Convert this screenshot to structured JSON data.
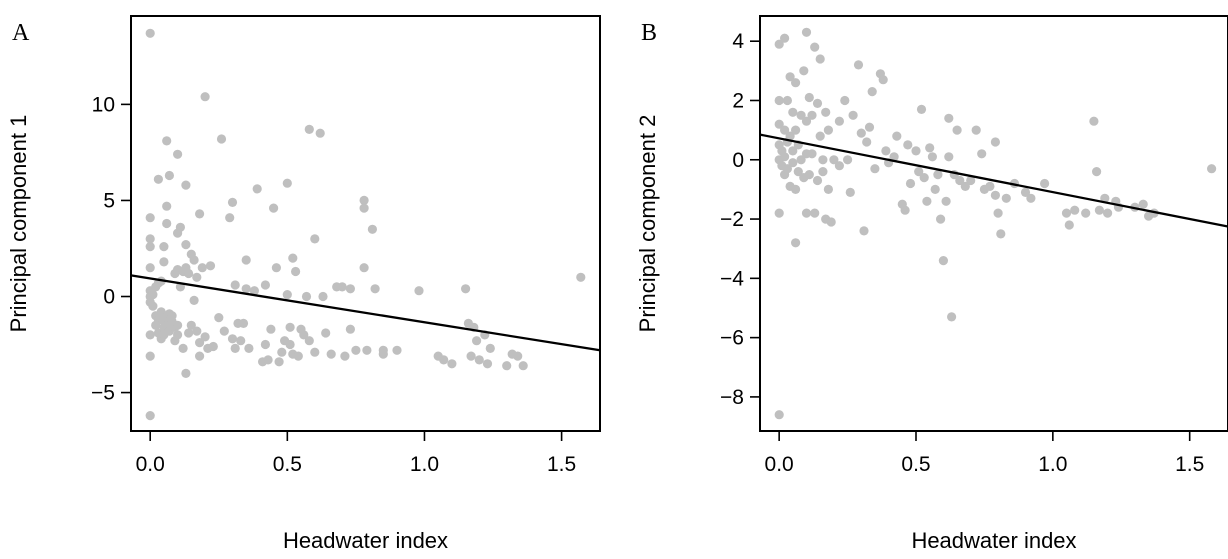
{
  "chart_data": [
    {
      "type": "scatter",
      "panel": "A",
      "xlabel": "Headwater index",
      "ylabel": "Principal component 1",
      "xticks": [
        "0.0",
        "0.5",
        "1.0",
        "1.5"
      ],
      "yticks": [
        "−5",
        "0",
        "5",
        "10"
      ],
      "xlim": [
        -0.07,
        1.64
      ],
      "ylim": [
        -7.0,
        14.6
      ],
      "point_color": "#bfbfbf",
      "line_color": "#000000",
      "grid": false,
      "regression_line": {
        "x": [
          -0.07,
          1.64
        ],
        "y": [
          1.1,
          -2.8
        ]
      },
      "points": [
        [
          0.0,
          13.7
        ],
        [
          0.0,
          4.1
        ],
        [
          0.0,
          3.0
        ],
        [
          0.0,
          2.6
        ],
        [
          0.0,
          1.5
        ],
        [
          0.0,
          0.3
        ],
        [
          0.0,
          0.0
        ],
        [
          0.0,
          -0.3
        ],
        [
          0.0,
          -2.0
        ],
        [
          0.0,
          -3.1
        ],
        [
          0.0,
          -6.2
        ],
        [
          0.01,
          0.1
        ],
        [
          0.01,
          -0.5
        ],
        [
          0.02,
          -1.0
        ],
        [
          0.02,
          -1.5
        ],
        [
          0.02,
          0.5
        ],
        [
          0.03,
          6.1
        ],
        [
          0.03,
          0.7
        ],
        [
          0.03,
          -1.2
        ],
        [
          0.03,
          -1.9
        ],
        [
          0.04,
          0.8
        ],
        [
          0.04,
          -0.8
        ],
        [
          0.04,
          -1.1
        ],
        [
          0.04,
          -2.2
        ],
        [
          0.05,
          2.6
        ],
        [
          0.05,
          1.8
        ],
        [
          0.05,
          -1.3
        ],
        [
          0.05,
          -2.0
        ],
        [
          0.05,
          -1.6
        ],
        [
          0.06,
          8.1
        ],
        [
          0.06,
          4.7
        ],
        [
          0.06,
          3.8
        ],
        [
          0.06,
          -1.1
        ],
        [
          0.06,
          -1.5
        ],
        [
          0.07,
          6.3
        ],
        [
          0.07,
          -0.9
        ],
        [
          0.07,
          -1.8
        ],
        [
          0.08,
          -1.0
        ],
        [
          0.08,
          -1.3
        ],
        [
          0.09,
          1.2
        ],
        [
          0.09,
          -2.3
        ],
        [
          0.09,
          -1.6
        ],
        [
          0.1,
          7.4
        ],
        [
          0.1,
          3.3
        ],
        [
          0.1,
          1.4
        ],
        [
          0.1,
          -2.0
        ],
        [
          0.1,
          -1.5
        ],
        [
          0.11,
          3.6
        ],
        [
          0.11,
          0.5
        ],
        [
          0.12,
          1.3
        ],
        [
          0.12,
          -2.7
        ],
        [
          0.13,
          5.8
        ],
        [
          0.13,
          2.7
        ],
        [
          0.13,
          1.5
        ],
        [
          0.13,
          -4.0
        ],
        [
          0.14,
          1.2
        ],
        [
          0.14,
          -1.9
        ],
        [
          0.15,
          2.2
        ],
        [
          0.15,
          -1.5
        ],
        [
          0.16,
          1.9
        ],
        [
          0.16,
          -0.2
        ],
        [
          0.17,
          1.0
        ],
        [
          0.17,
          -1.8
        ],
        [
          0.18,
          4.3
        ],
        [
          0.18,
          -2.4
        ],
        [
          0.18,
          -3.1
        ],
        [
          0.19,
          1.5
        ],
        [
          0.2,
          10.4
        ],
        [
          0.2,
          -2.1
        ],
        [
          0.21,
          -2.7
        ],
        [
          0.22,
          1.6
        ],
        [
          0.23,
          -2.6
        ],
        [
          0.25,
          -1.1
        ],
        [
          0.26,
          8.2
        ],
        [
          0.27,
          -1.8
        ],
        [
          0.29,
          4.1
        ],
        [
          0.3,
          4.9
        ],
        [
          0.3,
          -2.2
        ],
        [
          0.31,
          0.6
        ],
        [
          0.31,
          -2.7
        ],
        [
          0.32,
          -1.4
        ],
        [
          0.33,
          -2.3
        ],
        [
          0.34,
          -1.4
        ],
        [
          0.35,
          1.9
        ],
        [
          0.35,
          0.4
        ],
        [
          0.36,
          -2.7
        ],
        [
          0.38,
          0.3
        ],
        [
          0.39,
          5.6
        ],
        [
          0.41,
          -3.4
        ],
        [
          0.42,
          0.6
        ],
        [
          0.42,
          -2.5
        ],
        [
          0.43,
          -3.3
        ],
        [
          0.44,
          -1.7
        ],
        [
          0.45,
          4.6
        ],
        [
          0.46,
          1.5
        ],
        [
          0.47,
          -3.4
        ],
        [
          0.48,
          -2.9
        ],
        [
          0.49,
          -2.3
        ],
        [
          0.5,
          5.9
        ],
        [
          0.5,
          0.1
        ],
        [
          0.51,
          -1.6
        ],
        [
          0.51,
          -2.5
        ],
        [
          0.52,
          2.0
        ],
        [
          0.52,
          -3.0
        ],
        [
          0.53,
          1.3
        ],
        [
          0.54,
          -3.1
        ],
        [
          0.55,
          -1.7
        ],
        [
          0.56,
          -2.0
        ],
        [
          0.57,
          0.0
        ],
        [
          0.58,
          8.7
        ],
        [
          0.58,
          -2.3
        ],
        [
          0.6,
          3.0
        ],
        [
          0.6,
          -2.9
        ],
        [
          0.62,
          8.5
        ],
        [
          0.63,
          0.0
        ],
        [
          0.64,
          -1.9
        ],
        [
          0.66,
          -3.0
        ],
        [
          0.68,
          0.5
        ],
        [
          0.7,
          0.5
        ],
        [
          0.71,
          -3.1
        ],
        [
          0.73,
          0.4
        ],
        [
          0.73,
          -1.7
        ],
        [
          0.75,
          -2.8
        ],
        [
          0.78,
          5.0
        ],
        [
          0.78,
          4.6
        ],
        [
          0.78,
          1.5
        ],
        [
          0.79,
          -2.8
        ],
        [
          0.81,
          3.5
        ],
        [
          0.82,
          0.4
        ],
        [
          0.85,
          -2.8
        ],
        [
          0.85,
          -3.0
        ],
        [
          0.9,
          -2.8
        ],
        [
          0.98,
          0.3
        ],
        [
          1.05,
          -3.1
        ],
        [
          1.07,
          -3.3
        ],
        [
          1.1,
          -3.5
        ],
        [
          1.15,
          0.4
        ],
        [
          1.16,
          -1.4
        ],
        [
          1.17,
          -3.1
        ],
        [
          1.18,
          -1.6
        ],
        [
          1.19,
          -2.3
        ],
        [
          1.2,
          -3.3
        ],
        [
          1.22,
          -2.0
        ],
        [
          1.23,
          -3.5
        ],
        [
          1.24,
          -2.7
        ],
        [
          1.3,
          -3.6
        ],
        [
          1.32,
          -3.0
        ],
        [
          1.34,
          -3.1
        ],
        [
          1.36,
          -3.6
        ],
        [
          1.57,
          1.0
        ]
      ]
    },
    {
      "type": "scatter",
      "panel": "B",
      "xlabel": "Headwater index",
      "ylabel": "Principal component 2",
      "xticks": [
        "0.0",
        "0.5",
        "1.0",
        "1.5"
      ],
      "yticks": [
        "−8",
        "−6",
        "−4",
        "−2",
        "0",
        "2",
        "4"
      ],
      "xlim": [
        -0.07,
        1.64
      ],
      "ylim": [
        -9.15,
        4.85
      ],
      "point_color": "#bfbfbf",
      "line_color": "#000000",
      "grid": false,
      "regression_line": {
        "x": [
          -0.07,
          1.64
        ],
        "y": [
          0.85,
          -2.25
        ]
      },
      "points": [
        [
          0.0,
          3.9
        ],
        [
          0.0,
          2.0
        ],
        [
          0.0,
          1.2
        ],
        [
          0.0,
          0.5
        ],
        [
          0.0,
          0.0
        ],
        [
          0.0,
          -1.8
        ],
        [
          0.0,
          -8.6
        ],
        [
          0.01,
          0.3
        ],
        [
          0.01,
          -0.2
        ],
        [
          0.02,
          4.1
        ],
        [
          0.02,
          1.0
        ],
        [
          0.02,
          0.1
        ],
        [
          0.02,
          -0.5
        ],
        [
          0.03,
          2.0
        ],
        [
          0.03,
          0.6
        ],
        [
          0.03,
          -0.3
        ],
        [
          0.04,
          2.8
        ],
        [
          0.04,
          0.8
        ],
        [
          0.04,
          -0.9
        ],
        [
          0.05,
          1.6
        ],
        [
          0.05,
          0.3
        ],
        [
          0.05,
          -0.1
        ],
        [
          0.06,
          2.6
        ],
        [
          0.06,
          1.0
        ],
        [
          0.06,
          -1.0
        ],
        [
          0.06,
          -2.8
        ],
        [
          0.07,
          0.5
        ],
        [
          0.07,
          -0.4
        ],
        [
          0.08,
          1.5
        ],
        [
          0.08,
          0.0
        ],
        [
          0.09,
          3.0
        ],
        [
          0.09,
          -0.6
        ],
        [
          0.1,
          4.3
        ],
        [
          0.1,
          1.3
        ],
        [
          0.1,
          0.2
        ],
        [
          0.1,
          -1.8
        ],
        [
          0.11,
          2.1
        ],
        [
          0.11,
          -0.5
        ],
        [
          0.12,
          1.5
        ],
        [
          0.12,
          0.2
        ],
        [
          0.13,
          3.8
        ],
        [
          0.13,
          -1.8
        ],
        [
          0.14,
          1.9
        ],
        [
          0.14,
          -0.7
        ],
        [
          0.15,
          3.4
        ],
        [
          0.15,
          0.8
        ],
        [
          0.16,
          0.0
        ],
        [
          0.16,
          -0.4
        ],
        [
          0.17,
          1.6
        ],
        [
          0.17,
          -2.0
        ],
        [
          0.18,
          1.0
        ],
        [
          0.18,
          -1.0
        ],
        [
          0.19,
          -2.1
        ],
        [
          0.2,
          0.0
        ],
        [
          0.22,
          1.3
        ],
        [
          0.22,
          -0.2
        ],
        [
          0.24,
          2.0
        ],
        [
          0.25,
          0.0
        ],
        [
          0.26,
          -1.1
        ],
        [
          0.27,
          1.5
        ],
        [
          0.29,
          3.2
        ],
        [
          0.3,
          0.9
        ],
        [
          0.31,
          -2.4
        ],
        [
          0.32,
          0.6
        ],
        [
          0.33,
          1.1
        ],
        [
          0.34,
          2.3
        ],
        [
          0.35,
          -0.3
        ],
        [
          0.37,
          2.9
        ],
        [
          0.38,
          2.7
        ],
        [
          0.39,
          0.3
        ],
        [
          0.4,
          -0.1
        ],
        [
          0.42,
          0.1
        ],
        [
          0.43,
          0.8
        ],
        [
          0.45,
          -1.5
        ],
        [
          0.46,
          -1.7
        ],
        [
          0.47,
          0.5
        ],
        [
          0.48,
          -0.8
        ],
        [
          0.5,
          0.3
        ],
        [
          0.51,
          -0.4
        ],
        [
          0.52,
          1.7
        ],
        [
          0.53,
          -0.6
        ],
        [
          0.54,
          -1.4
        ],
        [
          0.55,
          0.4
        ],
        [
          0.56,
          0.1
        ],
        [
          0.57,
          -1.0
        ],
        [
          0.58,
          -0.5
        ],
        [
          0.59,
          -2.0
        ],
        [
          0.6,
          -3.4
        ],
        [
          0.61,
          -1.4
        ],
        [
          0.62,
          1.4
        ],
        [
          0.62,
          0.1
        ],
        [
          0.63,
          -5.3
        ],
        [
          0.64,
          -0.5
        ],
        [
          0.65,
          1.0
        ],
        [
          0.66,
          -0.7
        ],
        [
          0.68,
          -0.9
        ],
        [
          0.7,
          -0.7
        ],
        [
          0.72,
          1.0
        ],
        [
          0.74,
          0.2
        ],
        [
          0.75,
          -1.0
        ],
        [
          0.77,
          -0.9
        ],
        [
          0.79,
          0.6
        ],
        [
          0.79,
          -1.2
        ],
        [
          0.8,
          -1.8
        ],
        [
          0.81,
          -2.5
        ],
        [
          0.83,
          -1.3
        ],
        [
          0.86,
          -0.8
        ],
        [
          0.9,
          -1.1
        ],
        [
          0.92,
          -1.3
        ],
        [
          0.97,
          -0.8
        ],
        [
          1.05,
          -1.8
        ],
        [
          1.06,
          -2.2
        ],
        [
          1.08,
          -1.7
        ],
        [
          1.12,
          -1.8
        ],
        [
          1.15,
          1.3
        ],
        [
          1.16,
          -0.4
        ],
        [
          1.17,
          -1.7
        ],
        [
          1.19,
          -1.3
        ],
        [
          1.2,
          -1.8
        ],
        [
          1.23,
          -1.4
        ],
        [
          1.24,
          -1.6
        ],
        [
          1.3,
          -1.6
        ],
        [
          1.33,
          -1.5
        ],
        [
          1.35,
          -1.9
        ],
        [
          1.37,
          -1.8
        ],
        [
          1.58,
          -0.3
        ]
      ]
    }
  ]
}
